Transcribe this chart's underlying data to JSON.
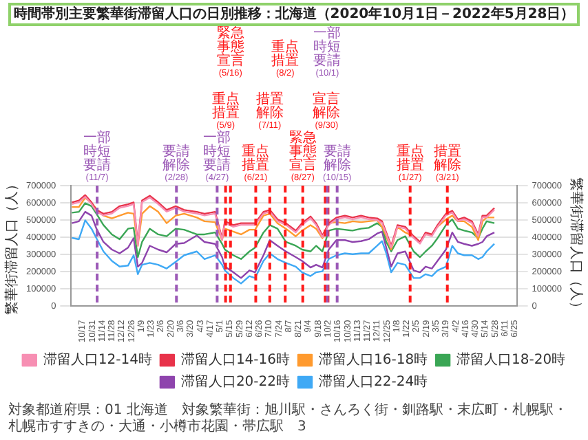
{
  "chart_data": {
    "type": "line",
    "title": "時間帯別主要繁華街滞留人口の日別推移：北海道（2020年10月1日－2022年5月28日）",
    "ylabel": "繁華街滞留人口（人）",
    "y2label": "繁華街滞留人口（人）",
    "x": [
      "2020-10-02",
      "2020-10-12",
      "2020-10-21",
      "2020-10-30",
      "2020-11-06",
      "2020-11-16",
      "2020-11-28",
      "2020-12-09",
      "2020-12-21",
      "2020-12-29",
      "2021-01-04",
      "2021-01-10",
      "2021-01-21",
      "2021-02-02",
      "2021-02-14",
      "2021-02-27",
      "2021-03-11",
      "2021-03-29",
      "2021-04-09",
      "2021-04-24",
      "2021-05-04",
      "2021-05-08",
      "2021-05-20",
      "2021-05-31",
      "2021-06-12",
      "2021-06-20",
      "2021-07-02",
      "2021-07-11",
      "2021-07-22",
      "2021-08-03",
      "2021-08-17",
      "2021-08-26",
      "2021-09-07",
      "2021-09-15",
      "2021-09-24",
      "2021-10-03",
      "2021-10-14",
      "2021-10-26",
      "2021-11-06",
      "2021-11-18",
      "2021-11-29",
      "2021-12-11",
      "2021-12-18",
      "2021-12-24",
      "2021-12-31",
      "2022-01-09",
      "2022-01-20",
      "2022-02-01",
      "2022-02-10",
      "2022-02-18",
      "2022-02-27",
      "2022-03-07",
      "2022-03-19",
      "2022-03-28",
      "2022-04-05",
      "2022-04-14",
      "2022-04-25",
      "2022-05-04",
      "2022-05-10",
      "2022-05-16",
      "2022-05-27"
    ],
    "series": [
      {
        "name": "滞留人口12-14時",
        "color": "#f78fb3",
        "values": [
          593000,
          604000,
          635000,
          593000,
          549000,
          527000,
          538000,
          571000,
          582000,
          593000,
          352000,
          604000,
          631000,
          593000,
          549000,
          571000,
          549000,
          538000,
          527000,
          538000,
          385000,
          483000,
          461000,
          472000,
          472000,
          472000,
          538000,
          549000,
          494000,
          472000,
          429000,
          472000,
          511000,
          472000,
          401000,
          472000,
          505000,
          516000,
          505000,
          516000,
          505000,
          500000,
          483000,
          418000,
          341000,
          461000,
          451000,
          396000,
          363000,
          418000,
          407000,
          461000,
          527000,
          544000,
          494000,
          505000,
          483000,
          407000,
          516000,
          516000,
          560000
        ]
      },
      {
        "name": "滞留人口14-16時",
        "color": "#e8334a",
        "values": [
          603000,
          614000,
          645000,
          603000,
          559000,
          537000,
          548000,
          581000,
          592000,
          603000,
          362000,
          614000,
          641000,
          603000,
          559000,
          581000,
          559000,
          548000,
          537000,
          548000,
          395000,
          493000,
          471000,
          482000,
          482000,
          482000,
          548000,
          559000,
          504000,
          482000,
          439000,
          482000,
          521000,
          482000,
          411000,
          482000,
          515000,
          526000,
          515000,
          526000,
          515000,
          510000,
          493000,
          428000,
          351000,
          471000,
          461000,
          406000,
          373000,
          428000,
          417000,
          471000,
          537000,
          554000,
          504000,
          515000,
          493000,
          417000,
          526000,
          526000,
          570000
        ]
      },
      {
        "name": "滞留人口16-18時",
        "color": "#ff9a2e",
        "values": [
          576000,
          576000,
          630000,
          598000,
          565000,
          526000,
          510000,
          526000,
          543000,
          537000,
          351000,
          537000,
          581000,
          548000,
          482000,
          526000,
          537000,
          515000,
          493000,
          488000,
          384000,
          450000,
          433000,
          417000,
          444000,
          444000,
          526000,
          537000,
          482000,
          450000,
          406000,
          439000,
          471000,
          450000,
          395000,
          482000,
          488000,
          482000,
          493000,
          488000,
          493000,
          499000,
          461000,
          406000,
          329000,
          461000,
          428000,
          406000,
          373000,
          417000,
          417000,
          461000,
          504000,
          526000,
          493000,
          493000,
          461000,
          384000,
          493000,
          515000,
          515000
        ]
      },
      {
        "name": "滞留人口18-20時",
        "color": "#3aa655",
        "values": [
          543000,
          548000,
          598000,
          581000,
          537000,
          471000,
          417000,
          389000,
          450000,
          455000,
          285000,
          373000,
          450000,
          417000,
          406000,
          450000,
          444000,
          417000,
          417000,
          428000,
          362000,
          329000,
          296000,
          274000,
          318000,
          340000,
          428000,
          471000,
          450000,
          373000,
          351000,
          329000,
          318000,
          351000,
          318000,
          439000,
          450000,
          444000,
          439000,
          450000,
          455000,
          482000,
          461000,
          373000,
          318000,
          384000,
          406000,
          318000,
          285000,
          318000,
          351000,
          395000,
          471000,
          504000,
          450000,
          439000,
          428000,
          395000,
          450000,
          493000,
          482000
        ]
      },
      {
        "name": "滞留人口20-22時",
        "color": "#8e44ad",
        "values": [
          482000,
          493000,
          548000,
          526000,
          450000,
          373000,
          329000,
          307000,
          340000,
          395000,
          230000,
          252000,
          351000,
          329000,
          313000,
          362000,
          367000,
          411000,
          373000,
          362000,
          285000,
          230000,
          197000,
          164000,
          208000,
          197000,
          296000,
          384000,
          351000,
          318000,
          285000,
          263000,
          225000,
          241000,
          225000,
          329000,
          384000,
          384000,
          373000,
          378000,
          389000,
          422000,
          433000,
          340000,
          230000,
          307000,
          318000,
          208000,
          197000,
          230000,
          219000,
          263000,
          329000,
          428000,
          373000,
          362000,
          351000,
          362000,
          373000,
          406000,
          428000
        ]
      },
      {
        "name": "滞留人口22-24時",
        "color": "#3fa9f5",
        "values": [
          397000,
          389000,
          499000,
          450000,
          395000,
          318000,
          263000,
          230000,
          236000,
          296000,
          186000,
          241000,
          252000,
          241000,
          219000,
          258000,
          296000,
          318000,
          274000,
          296000,
          241000,
          208000,
          164000,
          132000,
          175000,
          164000,
          263000,
          307000,
          274000,
          252000,
          230000,
          197000,
          175000,
          197000,
          203000,
          274000,
          296000,
          307000,
          302000,
          307000,
          307000,
          351000,
          378000,
          307000,
          197000,
          252000,
          241000,
          164000,
          164000,
          186000,
          175000,
          208000,
          230000,
          351000,
          307000,
          296000,
          296000,
          274000,
          285000,
          318000,
          362000
        ]
      }
    ],
    "xlim": [
      "2020-10-01",
      "2022-06-28"
    ],
    "xticks": [
      {
        "value": "2020-10-17",
        "label": "10/17"
      },
      {
        "value": "2020-10-31",
        "label": "10/31"
      },
      {
        "value": "2020-11-14",
        "label": "11/14"
      },
      {
        "value": "2020-11-28",
        "label": "11/28"
      },
      {
        "value": "2020-12-12",
        "label": "12/12"
      },
      {
        "value": "2020-12-26",
        "label": "12/26"
      },
      {
        "value": "2021-01-09",
        "label": "1/9"
      },
      {
        "value": "2021-01-23",
        "label": "1/23"
      },
      {
        "value": "2021-02-06",
        "label": "2/6"
      },
      {
        "value": "2021-02-20",
        "label": "2/20"
      },
      {
        "value": "2021-03-06",
        "label": "3/6"
      },
      {
        "value": "2021-03-20",
        "label": "3/20"
      },
      {
        "value": "2021-04-03",
        "label": "4/3"
      },
      {
        "value": "2021-04-17",
        "label": "4/17"
      },
      {
        "value": "2021-05-01",
        "label": "5/1"
      },
      {
        "value": "2021-05-15",
        "label": "5/15"
      },
      {
        "value": "2021-05-29",
        "label": "5/29"
      },
      {
        "value": "2021-06-12",
        "label": "6/12"
      },
      {
        "value": "2021-06-26",
        "label": "6/26"
      },
      {
        "value": "2021-07-10",
        "label": "7/10"
      },
      {
        "value": "2021-07-24",
        "label": "7/24"
      },
      {
        "value": "2021-08-07",
        "label": "8/7"
      },
      {
        "value": "2021-08-21",
        "label": "8/21"
      },
      {
        "value": "2021-09-04",
        "label": "9/4"
      },
      {
        "value": "2021-09-18",
        "label": "9/18"
      },
      {
        "value": "2021-10-02",
        "label": "10/2"
      },
      {
        "value": "2021-10-16",
        "label": "10/16"
      },
      {
        "value": "2021-10-30",
        "label": "10/30"
      },
      {
        "value": "2021-11-13",
        "label": "11/13"
      },
      {
        "value": "2021-11-27",
        "label": "11/27"
      },
      {
        "value": "2021-12-11",
        "label": "12/11"
      },
      {
        "value": "2021-12-25",
        "label": "12/25"
      },
      {
        "value": "2022-01-08",
        "label": "1/8"
      },
      {
        "value": "2022-01-22",
        "label": "1/22"
      },
      {
        "value": "2022-02-05",
        "label": "2/5"
      },
      {
        "value": "2022-02-19",
        "label": "2/19"
      },
      {
        "value": "2022-03-05",
        "label": "3/5"
      },
      {
        "value": "2022-03-19",
        "label": "3/19"
      },
      {
        "value": "2022-04-02",
        "label": "4/2"
      },
      {
        "value": "2022-04-16",
        "label": "4/16"
      },
      {
        "value": "2022-04-30",
        "label": "4/30"
      },
      {
        "value": "2022-05-14",
        "label": "5/14"
      },
      {
        "value": "2022-05-28",
        "label": "5/28"
      },
      {
        "value": "2022-06-11",
        "label": "6/11"
      },
      {
        "value": "2022-06-25",
        "label": "6/25"
      }
    ],
    "ylim": [
      0,
      700000
    ],
    "yticks": [
      0,
      100000,
      200000,
      300000,
      400000,
      500000,
      600000,
      700000
    ],
    "y2lim": [
      0,
      700000
    ],
    "y2ticks": [
      0,
      100000,
      200000,
      300000,
      400000,
      500000,
      600000,
      700000
    ],
    "ref_lines": [
      {
        "axis": "x",
        "value": "2020-11-07",
        "label": "一部時短要請(11/7)",
        "color": "#9b59b6",
        "line_style": "dashed"
      },
      {
        "axis": "x",
        "value": "2021-02-28",
        "label": "要請解除(2/28)",
        "color": "#9b59b6",
        "line_style": "dashed"
      },
      {
        "axis": "x",
        "value": "2021-04-27",
        "label": "一部時短要請(4/27)",
        "color": "#9b59b6",
        "line_style": "dashed"
      },
      {
        "axis": "x",
        "value": "2021-05-09",
        "label": "重点措置(5/9)",
        "color": "#ff1a1a",
        "line_style": "dashed"
      },
      {
        "axis": "x",
        "value": "2021-05-16",
        "label": "緊急事態宣言(5/16)",
        "color": "#ff1a1a",
        "line_style": "dashed"
      },
      {
        "axis": "x",
        "value": "2021-06-21",
        "label": "重点措置(6/21)",
        "color": "#ff1a1a",
        "line_style": "dashed"
      },
      {
        "axis": "x",
        "value": "2021-07-11",
        "label": "措置解除(7/11)",
        "color": "#ff1a1a",
        "line_style": "dashed"
      },
      {
        "axis": "x",
        "value": "2021-08-02",
        "label": "重点措置(8/2)",
        "color": "#ff1a1a",
        "line_style": "dashed"
      },
      {
        "axis": "x",
        "value": "2021-08-27",
        "label": "緊急事態宣言(8/27)",
        "color": "#ff1a1a",
        "line_style": "dashed"
      },
      {
        "axis": "x",
        "value": "2021-09-30",
        "label": "宣言解除(9/30)",
        "color": "#ff1a1a",
        "line_style": "dashed"
      },
      {
        "axis": "x",
        "value": "2021-10-01",
        "label": "一部時短要請(10/1)",
        "color": "#9b59b6",
        "line_style": "dashed"
      },
      {
        "axis": "x",
        "value": "2021-10-15",
        "label": "要請解除(10/15)",
        "color": "#9b59b6",
        "line_style": "dashed"
      },
      {
        "axis": "x",
        "value": "2022-01-27",
        "label": "重点措置(1/27)",
        "color": "#ff1a1a",
        "line_style": "dashed"
      },
      {
        "axis": "x",
        "value": "2022-03-21",
        "label": "措置解除(3/21)",
        "color": "#ff1a1a",
        "line_style": "dashed"
      }
    ],
    "annotations": [
      "対象都道府県：01 北海道",
      "対象繁華街：旭川駅・さんろく街・釧路駅・末広町・札幌駅・札幌市すすきの・大通・小樽市花園・帯広駅",
      "3"
    ],
    "grid": "y",
    "legend": "bottom"
  }
}
